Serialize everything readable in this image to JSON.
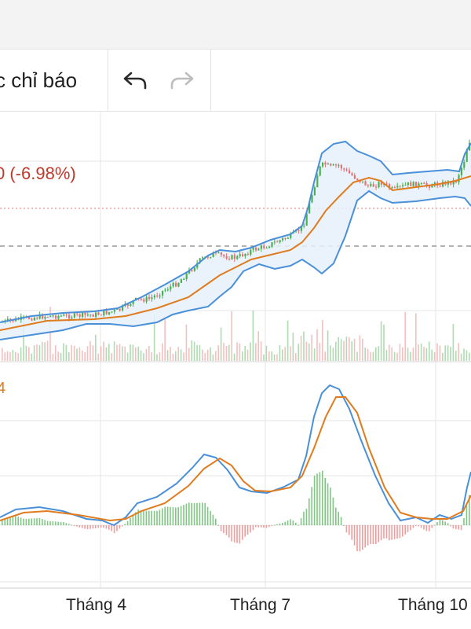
{
  "toolbar": {
    "indicators_label": "c chỉ báo",
    "undo_icon": "undo-arrow-icon",
    "redo_icon": "redo-arrow-icon"
  },
  "price_panel": {
    "change_label": "0 (-6.98%)",
    "change_color": "#c0392b"
  },
  "macd_panel": {
    "label": "4",
    "label_color": "#e07b1e"
  },
  "x_axis": {
    "labels": [
      "Tháng 4",
      "Tháng 7",
      "Tháng 10"
    ]
  },
  "colors": {
    "bollinger_band": "#4a90d9",
    "band_fill": "#e6f1fb",
    "middle_band": "#e07b1e",
    "up_candle": "#4caf50",
    "down_candle": "#e57373",
    "macd_line": "#4a90d9",
    "signal_line": "#e07b1e"
  }
}
